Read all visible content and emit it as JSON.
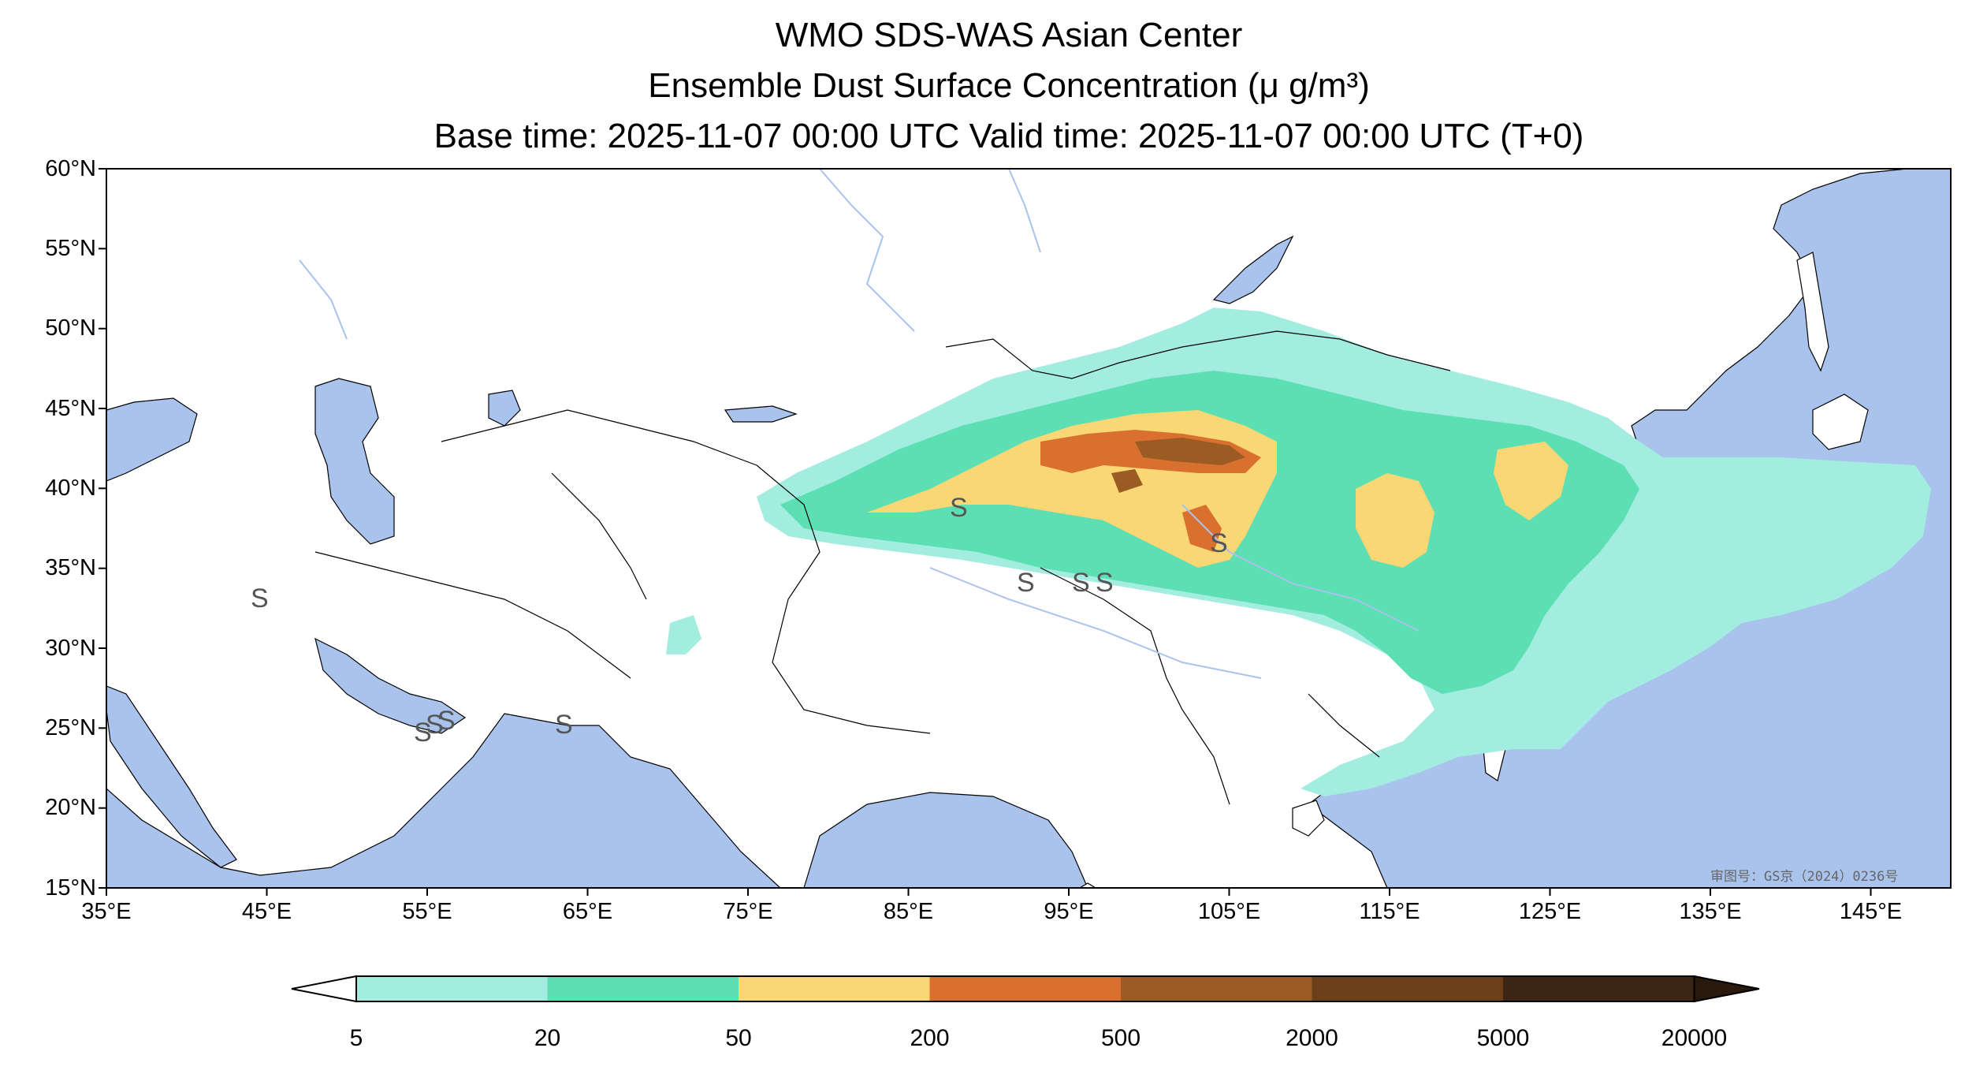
{
  "header": {
    "line1": "WMO SDS-WAS Asian Center",
    "line2": "Ensemble Dust Surface Concentration (μ g/m³)",
    "line3": "Base time: 2025-11-07 00:00 UTC Valid time: 2025-11-07 00:00 UTC (T+0)"
  },
  "map": {
    "extent": {
      "lon": [
        35,
        150
      ],
      "lat": [
        15,
        60
      ]
    },
    "lat_ticks": [
      "60°N",
      "55°N",
      "50°N",
      "45°N",
      "40°N",
      "35°N",
      "30°N",
      "25°N",
      "20°N",
      "15°N"
    ],
    "lon_ticks": [
      "35°E",
      "45°E",
      "55°E",
      "65°E",
      "75°E",
      "85°E",
      "95°E",
      "105°E",
      "115°E",
      "125°E",
      "135°E",
      "145°E"
    ],
    "approval_text": "审图号：GS京（2024）0236号",
    "ocean_color": "#a9c3ec",
    "dust_stations_symbol": "S"
  },
  "colorbar": {
    "levels": [
      "5",
      "20",
      "50",
      "200",
      "500",
      "2000",
      "5000",
      "20000"
    ],
    "colors": [
      "#a3ece0",
      "#5ddfb4",
      "#f9d774",
      "#da702f",
      "#9b5c24",
      "#6b4019",
      "#3c2514"
    ]
  }
}
